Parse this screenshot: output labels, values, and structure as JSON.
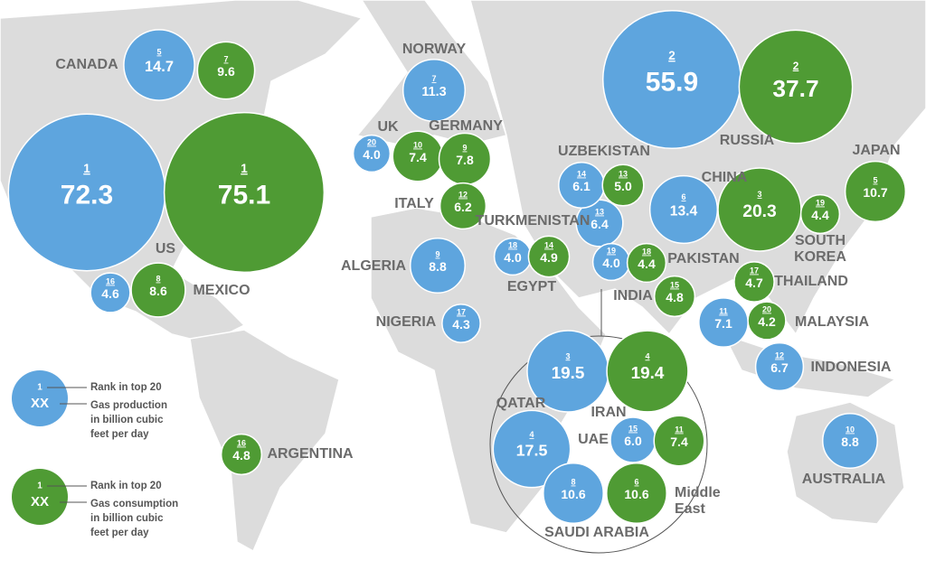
{
  "labels": [
    "CANADA",
    "US",
    "MEXICO",
    "NORWAY",
    "UK",
    "GERMANY",
    "ITALY",
    "TURKMENISTAN",
    "ALGERIA",
    "EGYPT",
    "NIGERIA",
    "UZBEKISTAN",
    "PAKISTAN",
    "INDIA",
    "RUSSIA",
    "CHINA",
    "JAPAN",
    "SOUTH KOREA",
    "THAILAND",
    "MALAYSIA",
    "INDONESIA",
    "AUSTRALIA",
    "ARGENTINA",
    "QATAR",
    "IRAN",
    "UAE",
    "SAUDI ARABIA",
    "Middle East"
  ],
  "colors": {
    "production": "#5ea5de",
    "consumption": "#4f9b34"
  },
  "bubbles": [
    {
      "kind": "production",
      "rank": 5,
      "value": 14.7
    },
    {
      "kind": "production",
      "rank": 1,
      "value": 72.3
    },
    {
      "kind": "production",
      "rank": 16,
      "value": 4.6
    },
    {
      "kind": "production",
      "rank": 7,
      "value": 11.3
    },
    {
      "kind": "production",
      "rank": 20,
      "value": 4.0,
      "value_label": "4.0"
    },
    {
      "kind": "production",
      "rank": 9,
      "value": 8.8
    },
    {
      "kind": "production",
      "rank": 17,
      "value": 4.3
    },
    {
      "kind": "production",
      "rank": 18,
      "value": 4.0,
      "value_label": "4.0"
    },
    {
      "kind": "production",
      "rank": 13,
      "value": 6.4
    },
    {
      "kind": "production",
      "rank": 14,
      "value": 6.1
    },
    {
      "kind": "production",
      "rank": 19,
      "value": 4.0,
      "value_label": "4.0"
    },
    {
      "kind": "production",
      "rank": 2,
      "value": 55.9
    },
    {
      "kind": "production",
      "rank": 6,
      "value": 13.4
    },
    {
      "kind": "production",
      "rank": 11,
      "value": 7.1
    },
    {
      "kind": "production",
      "rank": 12,
      "value": 6.7
    },
    {
      "kind": "production",
      "rank": 10,
      "value": 8.8
    },
    {
      "kind": "production",
      "rank": 4,
      "value": 17.5
    },
    {
      "kind": "production",
      "rank": 3,
      "value": 19.5
    },
    {
      "kind": "production",
      "rank": 15,
      "value": 6.0,
      "value_label": "6.0"
    },
    {
      "kind": "production",
      "rank": 8,
      "value": 10.6
    },
    {
      "kind": "consumption",
      "rank": 7,
      "value": 9.6
    },
    {
      "kind": "consumption",
      "rank": 1,
      "value": 75.1
    },
    {
      "kind": "consumption",
      "rank": 8,
      "value": 8.6
    },
    {
      "kind": "consumption",
      "rank": 10,
      "value": 7.4
    },
    {
      "kind": "consumption",
      "rank": 9,
      "value": 7.8
    },
    {
      "kind": "consumption",
      "rank": 12,
      "value": 6.2
    },
    {
      "kind": "consumption",
      "rank": 14,
      "value": 4.9
    },
    {
      "kind": "consumption",
      "rank": 13,
      "value": 5.0,
      "value_label": "5.0"
    },
    {
      "kind": "consumption",
      "rank": 18,
      "value": 4.4
    },
    {
      "kind": "consumption",
      "rank": 15,
      "value": 4.8
    },
    {
      "kind": "consumption",
      "rank": 2,
      "value": 37.7
    },
    {
      "kind": "consumption",
      "rank": 3,
      "value": 20.3
    },
    {
      "kind": "consumption",
      "rank": 19,
      "value": 4.4
    },
    {
      "kind": "consumption",
      "rank": 5,
      "value": 10.7
    },
    {
      "kind": "consumption",
      "rank": 17,
      "value": 4.7
    },
    {
      "kind": "consumption",
      "rank": 20,
      "value": 4.2
    },
    {
      "kind": "consumption",
      "rank": 4,
      "value": 19.4
    },
    {
      "kind": "consumption",
      "rank": 11,
      "value": 7.4
    },
    {
      "kind": "consumption",
      "rank": 6,
      "value": 10.6
    },
    {
      "kind": "consumption",
      "rank": 16,
      "value": 4.8
    }
  ],
  "legend": [
    {
      "kind": "production",
      "rank": 1,
      "value": "XX",
      "label": "Rank in top 20",
      "description": [
        "Gas production",
        "in billion cubic",
        "feet per day"
      ]
    },
    {
      "kind": "consumption",
      "rank": 1,
      "value": "XX",
      "label": "Rank in top 20",
      "description": [
        "Gas consumption",
        "in billion cubic",
        "feet per day"
      ]
    }
  ]
}
